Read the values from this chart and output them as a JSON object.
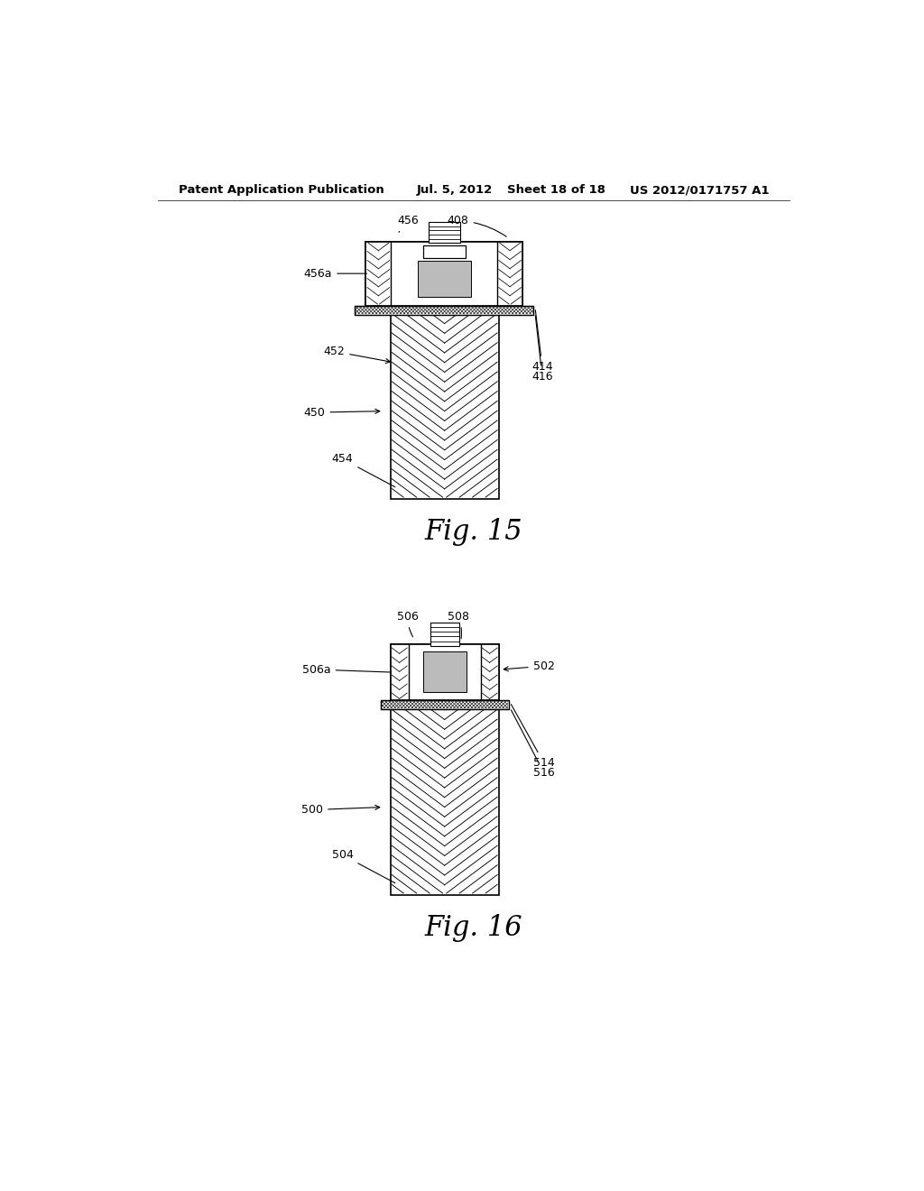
{
  "bg_color": "#ffffff",
  "header_text": "Patent Application Publication",
  "header_date": "Jul. 5, 2012",
  "header_sheet": "Sheet 18 of 18",
  "header_patent": "US 2012/0171757 A1",
  "fig15_caption": "Fig. 15",
  "fig16_caption": "Fig. 16",
  "line_color": "#000000",
  "hatch_color": "#000000"
}
